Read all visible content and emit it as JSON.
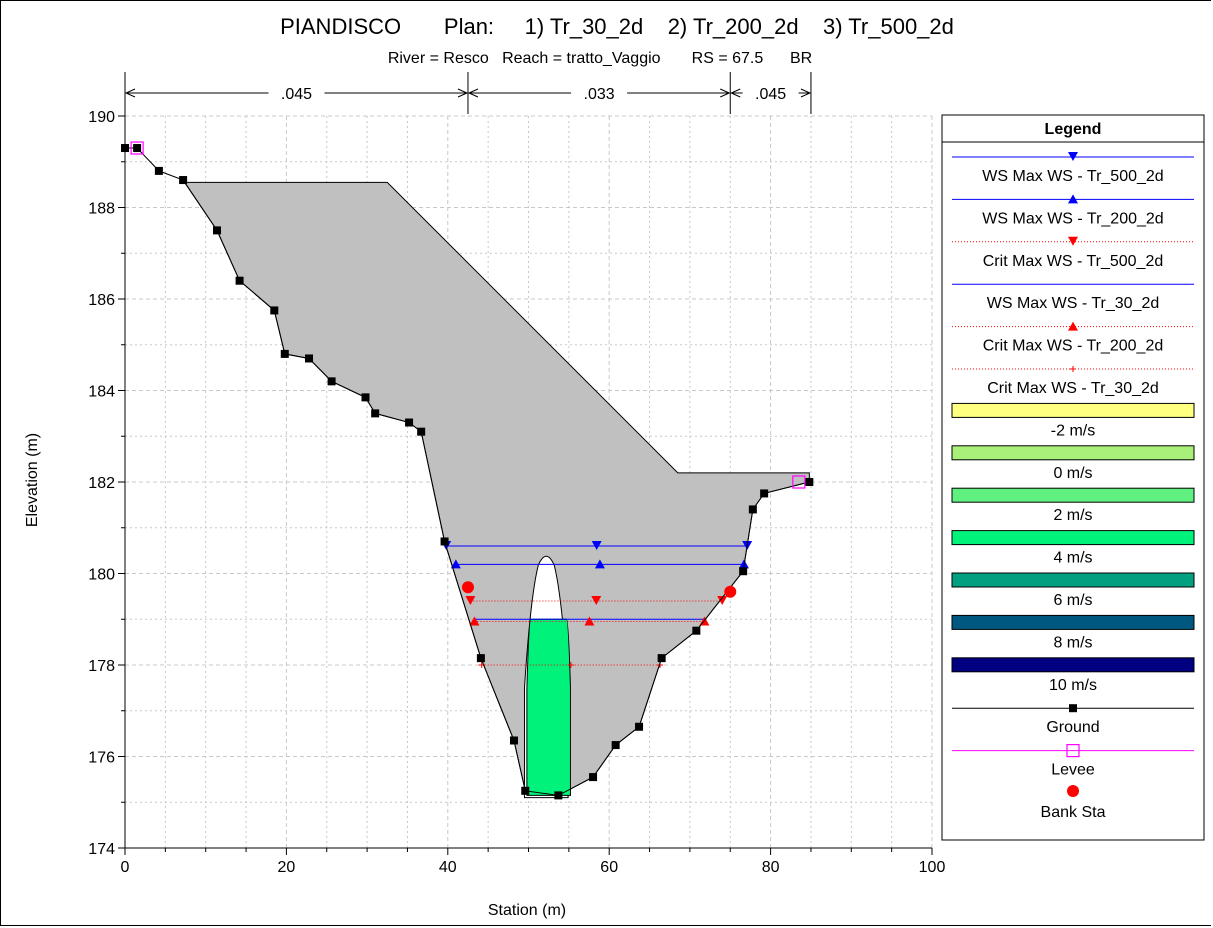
{
  "title": "PIANDISCO       Plan:     1) Tr_30_2d    2) Tr_200_2d    3) Tr_500_2d",
  "subtitle": "River = Resco   Reach = tratto_Vaggio       RS = 67.5      BR",
  "chart_data": {
    "type": "line",
    "title": "PIANDISCO       Plan:     1) Tr_30_2d    2) Tr_200_2d    3) Tr_500_2d",
    "subtitle": "River = Resco   Reach = tratto_Vaggio       RS = 67.5      BR",
    "xlabel": "Station (m)",
    "ylabel": "Elevation (m)",
    "xlim": [
      0,
      100
    ],
    "ylim": [
      174,
      190
    ],
    "xticks": [
      0,
      20,
      40,
      60,
      80,
      100
    ],
    "yticks": [
      174,
      176,
      178,
      180,
      182,
      184,
      186,
      188,
      190
    ],
    "grid": true,
    "legend_position": "right",
    "mannings_n": [
      {
        "label": ".045",
        "from": 0,
        "to": 42.5
      },
      {
        "label": ".033",
        "from": 42.5,
        "to": 75
      },
      {
        "label": ".045",
        "from": 75,
        "to": 85
      }
    ],
    "ground": {
      "name": "Ground",
      "x": [
        0,
        1.5,
        4.2,
        7.2,
        11.4,
        14.2,
        18.5,
        19.8,
        22.8,
        25.6,
        29.8,
        31.0,
        35.2,
        36.7,
        39.6,
        44.1,
        48.2,
        49.6,
        53.7,
        58.0,
        60.8,
        63.7,
        66.5,
        70.8,
        76.6,
        77.8,
        79.2,
        84.8
      ],
      "y": [
        189.3,
        189.3,
        188.8,
        188.6,
        187.5,
        186.4,
        185.75,
        184.8,
        184.7,
        184.2,
        183.85,
        183.5,
        183.3,
        183.1,
        180.7,
        178.15,
        176.35,
        175.25,
        175.15,
        175.55,
        176.25,
        176.65,
        178.15,
        178.75,
        180.05,
        181.4,
        181.75,
        182.0
      ]
    },
    "deck": {
      "x": [
        7.2,
        32.5,
        68.5,
        84.8
      ],
      "y": [
        188.55,
        188.55,
        182.2,
        182.2
      ]
    },
    "pier": {
      "center": 52.2,
      "bottom": 175.1,
      "top": 180.4
    },
    "flow_area": {
      "legend": "4 m/s",
      "color": "#00f27b",
      "x_left": 49.8,
      "x_right": 55.2,
      "top": 179.0,
      "bottom": 175.15
    },
    "water_surfaces": [
      {
        "name": "WS Max WS - Tr_500_2d",
        "elevation": 180.6,
        "x_from": 39.8,
        "x_to": 77.1,
        "style": "solid",
        "color": "#0000ff",
        "marker": "triangle-down"
      },
      {
        "name": "WS Max WS - Tr_200_2d",
        "elevation": 180.2,
        "x_from": 41.0,
        "x_to": 76.7,
        "style": "solid",
        "color": "#0000ff",
        "marker": "triangle-up"
      },
      {
        "name": "Crit Max WS - Tr_500_2d",
        "elevation": 179.4,
        "x_from": 42.8,
        "x_to": 74.0,
        "style": "dotted",
        "color": "#ff0000",
        "marker": "triangle-down"
      },
      {
        "name": "WS Max WS - Tr_30_2d",
        "elevation": 179.0,
        "x_from": 43.3,
        "x_to": 71.8,
        "style": "solid",
        "color": "#0000ff",
        "marker": "none"
      },
      {
        "name": "Crit Max WS - Tr_200_2d",
        "elevation": 178.95,
        "x_from": 43.3,
        "x_to": 71.8,
        "style": "dotted",
        "color": "#ff0000",
        "marker": "triangle-up"
      },
      {
        "name": "Crit Max WS - Tr_30_2d",
        "elevation": 178.0,
        "x_from": 44.2,
        "x_to": 66.3,
        "style": "dotted",
        "color": "#ff0000",
        "marker": "plus"
      }
    ],
    "levee": {
      "name": "Levee",
      "x": [
        1.5,
        83.5
      ],
      "y": [
        189.3,
        182.0
      ],
      "color": "#ff00ff"
    },
    "bank_stations": {
      "name": "Bank Sta",
      "x": [
        42.5,
        75.0
      ],
      "y": [
        179.7,
        179.6
      ],
      "color": "#ff0000"
    },
    "velocity_legend": [
      {
        "label": "-2 m/s",
        "color": "#ffff80"
      },
      {
        "label": "0 m/s",
        "color": "#a8f07a"
      },
      {
        "label": "2 m/s",
        "color": "#5ff080"
      },
      {
        "label": "4 m/s",
        "color": "#00f27b"
      },
      {
        "label": "6 m/s",
        "color": "#00a080"
      },
      {
        "label": "8 m/s",
        "color": "#005880"
      },
      {
        "label": "10 m/s",
        "color": "#000080"
      }
    ]
  },
  "legend": {
    "title": "Legend",
    "items": [
      {
        "label": "WS Max WS - Tr_500_2d",
        "kind": "line",
        "color": "#0000ff",
        "dash": "",
        "marker": "triangle-down"
      },
      {
        "label": "WS Max WS - Tr_200_2d",
        "kind": "line",
        "color": "#0000ff",
        "dash": "",
        "marker": "triangle-up"
      },
      {
        "label": "Crit Max WS - Tr_500_2d",
        "kind": "line",
        "color": "#ff0000",
        "dash": "1,2",
        "marker": "triangle-down"
      },
      {
        "label": "WS Max WS - Tr_30_2d",
        "kind": "line",
        "color": "#0000ff",
        "dash": "",
        "marker": "none"
      },
      {
        "label": "Crit Max WS - Tr_200_2d",
        "kind": "line",
        "color": "#ff0000",
        "dash": "1,2",
        "marker": "triangle-up"
      },
      {
        "label": "Crit Max WS - Tr_30_2d",
        "kind": "line",
        "color": "#ff0000",
        "dash": "1,2",
        "marker": "plus"
      },
      {
        "label": "-2 m/s",
        "kind": "swatch",
        "color": "#ffff80"
      },
      {
        "label": "0 m/s",
        "kind": "swatch",
        "color": "#a8f07a"
      },
      {
        "label": "2 m/s",
        "kind": "swatch",
        "color": "#5ff080"
      },
      {
        "label": "4 m/s",
        "kind": "swatch",
        "color": "#00f27b"
      },
      {
        "label": "6 m/s",
        "kind": "swatch",
        "color": "#00a080"
      },
      {
        "label": "8 m/s",
        "kind": "swatch",
        "color": "#005880"
      },
      {
        "label": "10 m/s",
        "kind": "swatch",
        "color": "#000080"
      },
      {
        "label": "Ground",
        "kind": "line",
        "color": "#000000",
        "dash": "",
        "marker": "square"
      },
      {
        "label": "Levee",
        "kind": "line",
        "color": "#ff00ff",
        "dash": "",
        "marker": "open-square"
      },
      {
        "label": "Bank Sta",
        "kind": "point",
        "color": "#ff0000",
        "marker": "circle"
      }
    ]
  }
}
